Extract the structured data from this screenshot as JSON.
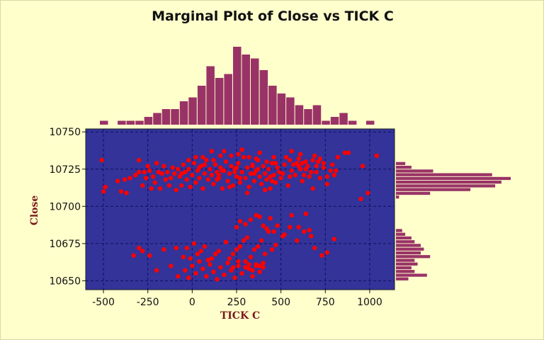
{
  "chart_data": {
    "type": "scatter",
    "title": "Marginal Plot of Close vs TICK  C",
    "xlabel": "TICK  C",
    "ylabel": "Close",
    "xlim": [
      -600,
      1140
    ],
    "ylim": [
      10644,
      10752
    ],
    "xticks": [
      -500,
      -250,
      0,
      250,
      500,
      750,
      1000
    ],
    "yticks": [
      10650,
      10675,
      10700,
      10725,
      10750
    ],
    "grid": true,
    "colors": {
      "plot_bg": "#333399",
      "points": "#ff0000",
      "bars": "#993366",
      "background": "#ffffcc",
      "grid": "#101060"
    },
    "series": [
      {
        "points": [
          [
            -510,
            10731
          ],
          [
            -500,
            10710
          ],
          [
            -490,
            10713
          ],
          [
            -420,
            10717
          ],
          [
            -400,
            10710
          ],
          [
            -380,
            10718
          ],
          [
            -370,
            10709
          ],
          [
            -330,
            10667
          ],
          [
            -300,
            10731
          ],
          [
            -280,
            10714
          ],
          [
            -270,
            10723
          ],
          [
            -260,
            10719
          ],
          [
            -250,
            10727
          ],
          [
            -240,
            10724
          ],
          [
            -230,
            10712
          ],
          [
            -220,
            10720
          ],
          [
            -210,
            10716
          ],
          [
            -200,
            10729
          ],
          [
            -190,
            10723
          ],
          [
            -180,
            10712
          ],
          [
            -170,
            10722
          ],
          [
            -160,
            10727
          ],
          [
            -150,
            10718
          ],
          [
            -140,
            10723
          ],
          [
            -130,
            10714
          ],
          [
            -120,
            10719
          ],
          [
            -110,
            10726
          ],
          [
            -100,
            10722
          ],
          [
            -90,
            10711
          ],
          [
            -80,
            10725
          ],
          [
            -70,
            10720
          ],
          [
            -60,
            10714
          ],
          [
            -50,
            10728
          ],
          [
            -40,
            10723
          ],
          [
            -30,
            10718
          ],
          [
            -20,
            10725
          ],
          [
            -10,
            10713
          ],
          [
            0,
            10721
          ],
          [
            10,
            10729
          ],
          [
            20,
            10716
          ],
          [
            30,
            10724
          ],
          [
            40,
            10719
          ],
          [
            50,
            10727
          ],
          [
            60,
            10712
          ],
          [
            70,
            10722
          ],
          [
            80,
            10731
          ],
          [
            90,
            10718
          ],
          [
            100,
            10725
          ],
          [
            110,
            10721
          ],
          [
            120,
            10715
          ],
          [
            130,
            10728
          ],
          [
            140,
            10723
          ],
          [
            150,
            10719
          ],
          [
            160,
            10726
          ],
          [
            170,
            10712
          ],
          [
            180,
            10724
          ],
          [
            190,
            10730
          ],
          [
            200,
            10717
          ],
          [
            210,
            10722
          ],
          [
            220,
            10727
          ],
          [
            230,
            10714
          ],
          [
            240,
            10725
          ],
          [
            250,
            10720
          ],
          [
            260,
            10729
          ],
          [
            270,
            10716
          ],
          [
            280,
            10723
          ],
          [
            290,
            10733
          ],
          [
            300,
            10719
          ],
          [
            310,
            10726
          ],
          [
            320,
            10713
          ],
          [
            330,
            10722
          ],
          [
            340,
            10728
          ],
          [
            350,
            10717
          ],
          [
            360,
            10724
          ],
          [
            370,
            10731
          ],
          [
            380,
            10720
          ],
          [
            390,
            10715
          ],
          [
            400,
            10727
          ],
          [
            410,
            10722
          ],
          [
            420,
            10718
          ],
          [
            430,
            10725
          ],
          [
            440,
            10712
          ],
          [
            450,
            10729
          ],
          [
            460,
            10721
          ],
          [
            470,
            10716
          ],
          [
            480,
            10726
          ],
          [
            490,
            10723
          ],
          [
            500,
            10719
          ],
          [
            520,
            10728
          ],
          [
            540,
            10714
          ],
          [
            560,
            10724
          ],
          [
            580,
            10721
          ],
          [
            600,
            10727
          ],
          [
            620,
            10717
          ],
          [
            640,
            10725
          ],
          [
            660,
            10720
          ],
          [
            680,
            10712
          ],
          [
            700,
            10723
          ],
          [
            720,
            10719
          ],
          [
            740,
            10729
          ],
          [
            760,
            10715
          ],
          [
            780,
            10724
          ],
          [
            800,
            10721
          ],
          [
            820,
            10733
          ],
          [
            860,
            10736
          ],
          [
            880,
            10736
          ],
          [
            960,
            10727
          ],
          [
            1040,
            10734
          ],
          [
            990,
            10709
          ],
          [
            950,
            10705
          ],
          [
            -60,
            10722
          ],
          [
            40,
            10726
          ],
          [
            140,
            10718
          ],
          [
            240,
            10723
          ],
          [
            340,
            10727
          ],
          [
            440,
            10720
          ],
          [
            20,
            10733
          ],
          [
            120,
            10731
          ],
          [
            220,
            10734
          ],
          [
            320,
            10733
          ],
          [
            420,
            10730
          ],
          [
            180,
            10737
          ],
          [
            280,
            10738
          ],
          [
            380,
            10736
          ],
          [
            110,
            10737
          ],
          [
            210,
            10713
          ],
          [
            310,
            10709
          ],
          [
            410,
            10711
          ],
          [
            510,
            10722
          ],
          [
            610,
            10725
          ],
          [
            70,
            10728
          ],
          [
            170,
            10724
          ],
          [
            270,
            10719
          ],
          [
            370,
            10725
          ],
          [
            470,
            10729
          ],
          [
            150,
            10721
          ],
          [
            250,
            10726
          ],
          [
            350,
            10722
          ],
          [
            450,
            10717
          ],
          [
            550,
            10720
          ],
          [
            -40,
            10657
          ],
          [
            -20,
            10652
          ],
          [
            0,
            10660
          ],
          [
            20,
            10655
          ],
          [
            40,
            10663
          ],
          [
            60,
            10658
          ],
          [
            80,
            10653
          ],
          [
            100,
            10661
          ],
          [
            120,
            10656
          ],
          [
            140,
            10651
          ],
          [
            160,
            10659
          ],
          [
            180,
            10654
          ],
          [
            200,
            10662
          ],
          [
            220,
            10657
          ],
          [
            240,
            10652
          ],
          [
            260,
            10660
          ],
          [
            280,
            10655
          ],
          [
            300,
            10663
          ],
          [
            320,
            10658
          ],
          [
            340,
            10653
          ],
          [
            360,
            10661
          ],
          [
            380,
            10656
          ],
          [
            400,
            10659
          ],
          [
            -200,
            10657
          ],
          [
            -120,
            10660
          ],
          [
            -80,
            10653
          ],
          [
            30,
            10668
          ],
          [
            70,
            10673
          ],
          [
            110,
            10665
          ],
          [
            150,
            10670
          ],
          [
            190,
            10676
          ],
          [
            230,
            10668
          ],
          [
            270,
            10673
          ],
          [
            310,
            10679
          ],
          [
            350,
            10671
          ],
          [
            390,
            10677
          ],
          [
            430,
            10683
          ],
          [
            470,
            10674
          ],
          [
            510,
            10680
          ],
          [
            550,
            10686
          ],
          [
            590,
            10677
          ],
          [
            630,
            10683
          ],
          [
            670,
            10680
          ],
          [
            690,
            10672
          ],
          [
            730,
            10667
          ],
          [
            760,
            10669
          ],
          [
            800,
            10678
          ],
          [
            -30,
            10672
          ],
          [
            -10,
            10665
          ],
          [
            10,
            10675
          ],
          [
            50,
            10670
          ],
          [
            90,
            10664
          ],
          [
            130,
            10668
          ],
          [
            210,
            10665
          ],
          [
            250,
            10671
          ],
          [
            290,
            10677
          ],
          [
            330,
            10666
          ],
          [
            370,
            10673
          ],
          [
            410,
            10668
          ],
          [
            450,
            10671
          ],
          [
            -50,
            10666
          ],
          [
            -90,
            10672
          ],
          [
            250,
            10686
          ],
          [
            270,
            10690
          ],
          [
            300,
            10688
          ],
          [
            330,
            10691
          ],
          [
            360,
            10694
          ],
          [
            380,
            10693
          ],
          [
            400,
            10687
          ],
          [
            420,
            10685
          ],
          [
            440,
            10692
          ],
          [
            460,
            10683
          ],
          [
            480,
            10687
          ],
          [
            520,
            10681
          ],
          [
            560,
            10694
          ],
          [
            600,
            10686
          ],
          [
            640,
            10695
          ],
          [
            660,
            10684
          ],
          [
            380,
            10660
          ],
          [
            400,
            10662
          ],
          [
            300,
            10659
          ],
          [
            320,
            10661
          ],
          [
            340,
            10657
          ],
          [
            360,
            10660
          ],
          [
            260,
            10663
          ],
          [
            230,
            10659
          ],
          [
            -300,
            10672
          ],
          [
            -280,
            10670
          ],
          [
            -240,
            10667
          ],
          [
            -160,
            10671
          ],
          [
            680,
            10731
          ],
          [
            700,
            10727
          ],
          [
            720,
            10732
          ],
          [
            740,
            10726
          ],
          [
            760,
            10720
          ],
          [
            790,
            10728
          ],
          [
            810,
            10724
          ],
          [
            600,
            10732
          ],
          [
            620,
            10729
          ],
          [
            640,
            10730
          ],
          [
            530,
            10733
          ],
          [
            550,
            10731
          ],
          [
            570,
            10728
          ],
          [
            590,
            10729
          ],
          [
            610,
            10735
          ],
          [
            630,
            10721
          ],
          [
            650,
            10727
          ],
          [
            670,
            10723
          ],
          [
            690,
            10734
          ],
          [
            710,
            10730
          ],
          [
            -20,
            10731
          ],
          [
            60,
            10733
          ],
          [
            160,
            10734
          ],
          [
            260,
            10735
          ],
          [
            360,
            10732
          ],
          [
            460,
            10733
          ],
          [
            560,
            10737
          ],
          [
            -300,
            10723
          ],
          [
            -320,
            10721
          ],
          [
            -350,
            10719
          ]
        ]
      }
    ],
    "x_histogram": {
      "bin_start": -520,
      "bin_width": 50,
      "counts": [
        1,
        0,
        1,
        1,
        1,
        2,
        3,
        4,
        4,
        6,
        7,
        10,
        15,
        12,
        13,
        20,
        18,
        17,
        14,
        10,
        8,
        7,
        5,
        4,
        5,
        1,
        2,
        3,
        1,
        0,
        1,
        0,
        0,
        0,
        0
      ]
    },
    "y_histogram": {
      "bin_start": 10650,
      "bin_width": 2.5,
      "counts": [
        4,
        10,
        6,
        5,
        7,
        6,
        11,
        8,
        9,
        8,
        6,
        5,
        3,
        2,
        0,
        0,
        0,
        0,
        0,
        0,
        0,
        0,
        1,
        11,
        24,
        32,
        34,
        37,
        31,
        12,
        5,
        3
      ]
    }
  }
}
